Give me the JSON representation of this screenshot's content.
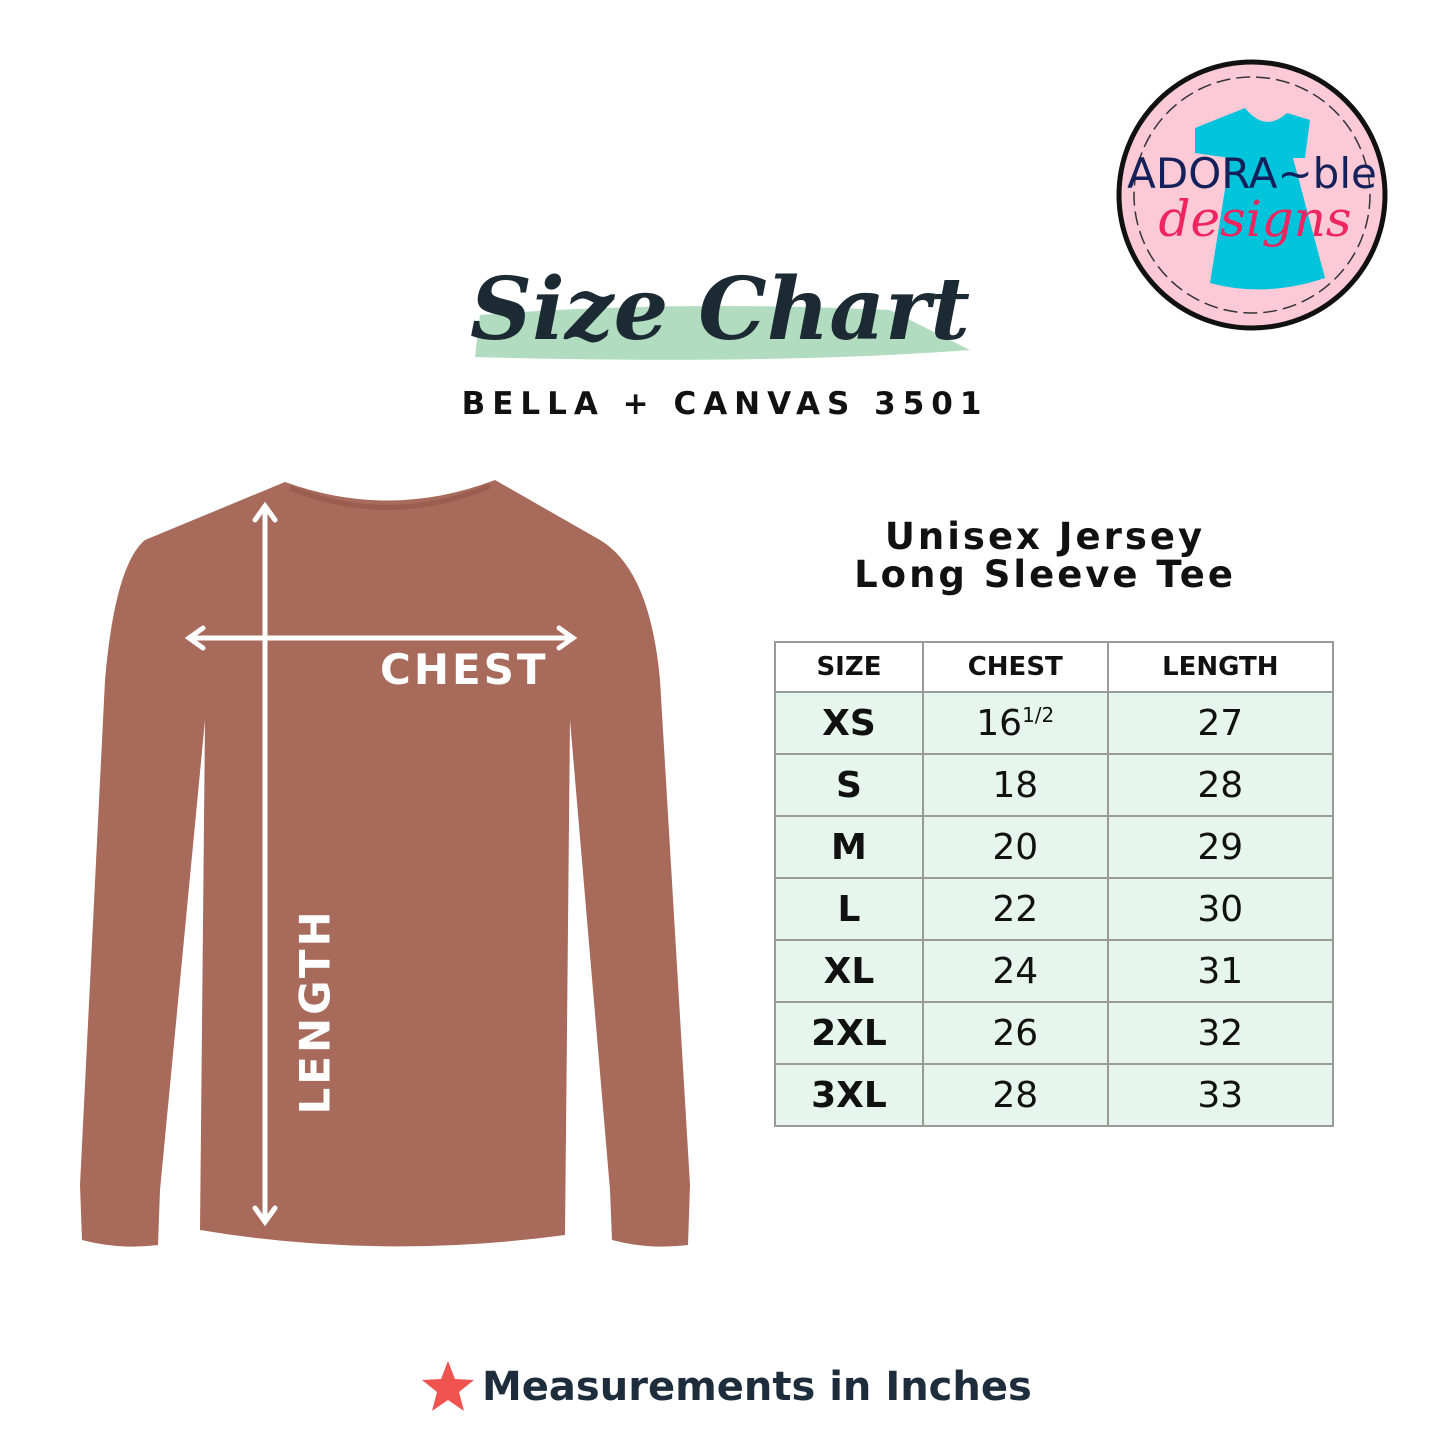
{
  "header": {
    "title": "Size Chart",
    "brand_model": "BELLA + CANVAS 3501"
  },
  "logo": {
    "text_line1": "ADORA-ble",
    "text_line2": "designs"
  },
  "product": {
    "title_line1": "Unisex Jersey",
    "title_line2": "Long Sleeve Tee",
    "shirt_color": "#a86a5b"
  },
  "diagram": {
    "chest_label": "CHEST",
    "length_label": "LENGTH"
  },
  "table": {
    "headers": [
      "SIZE",
      "CHEST",
      "LENGTH"
    ],
    "rows": [
      {
        "size": "XS",
        "chest": "16",
        "chest_fraction": "1/2",
        "length": "27"
      },
      {
        "size": "S",
        "chest": "18",
        "length": "28"
      },
      {
        "size": "M",
        "chest": "20",
        "length": "29"
      },
      {
        "size": "L",
        "chest": "22",
        "length": "30"
      },
      {
        "size": "XL",
        "chest": "24",
        "length": "31"
      },
      {
        "size": "2XL",
        "chest": "26",
        "length": "32"
      },
      {
        "size": "3XL",
        "chest": "28",
        "length": "33"
      }
    ]
  },
  "footer": {
    "icon": "star-icon",
    "text": "Measurements in Inches"
  },
  "colors": {
    "row_bg": "#e6f6ee",
    "brush": "#b2dcc0",
    "star": "#ef5350",
    "logo_pink": "#fcc9d6",
    "logo_teal": "#00c3dc"
  }
}
